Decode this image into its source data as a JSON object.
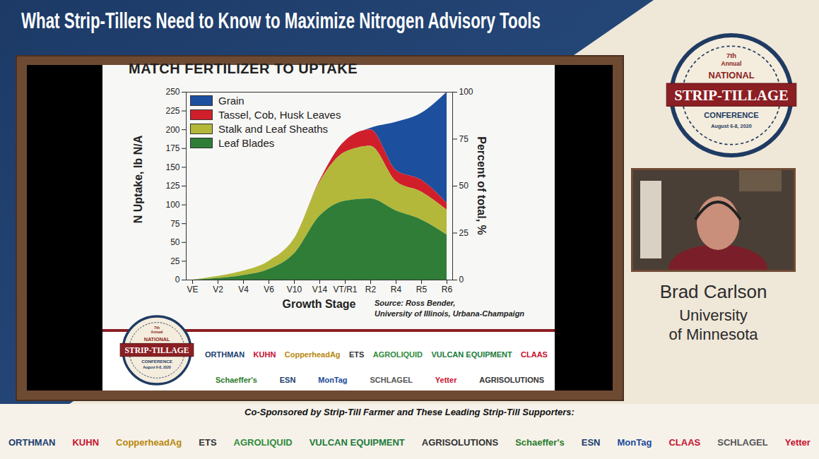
{
  "page": {
    "banner": "What Strip-Tillers Need to Know to Maximize Nitrogen Advisory Tools",
    "badge": {
      "edition": "7th",
      "annual": "Annual",
      "name": "NATIONAL",
      "title": "STRIP-TILLAGE",
      "subtitle": "CONFERENCE",
      "dates": "August 6-8, 2020"
    },
    "speaker": {
      "name": "Brad Carlson",
      "affiliation": [
        "University",
        "of Minnesota"
      ]
    },
    "slide_sponsors": [
      [
        "ORTHMAN",
        "KUHN",
        "CopperheadAg",
        "ETS",
        "AGROLIQUID",
        "VULCAN EQUIPMENT",
        "CLAAS"
      ],
      [
        "Schaeffer's",
        "ESN",
        "MonTag",
        "SCHLAGEL",
        "Yetter",
        "AGRISOLUTIONS"
      ]
    ],
    "cosponsor_note": "Co-Sponsored by Strip-Till Farmer and These Leading Strip-Till Supporters:",
    "sponsors": [
      "ORTHMAN",
      "KUHN",
      "CopperheadAg",
      "ETS",
      "AGROLIQUID",
      "VULCAN EQUIPMENT",
      "AGRISOLUTIONS",
      "Schaeffer's",
      "ESN",
      "MonTag",
      "CLAAS",
      "SCHLAGEL",
      "Yetter"
    ]
  },
  "chart_data": {
    "type": "area",
    "stacked": true,
    "title": "MATCH FERTILIZER TO UPTAKE",
    "xlabel": "Growth Stage",
    "ylabel": "N Uptake, lb N/A",
    "y2label": "Percent of total, %",
    "source": [
      "Source: Ross Bender,",
      "University of Illinois, Urbana-Champaign"
    ],
    "categories": [
      "VE",
      "V2",
      "V4",
      "V6",
      "V10",
      "V14",
      "VT/R1",
      "R2",
      "R4",
      "R5",
      "R6"
    ],
    "series": [
      {
        "name": "Grain",
        "color": "#1c4f9e",
        "values": [
          0,
          0,
          0,
          0,
          0,
          0,
          0,
          2,
          64,
          89,
          148
        ]
      },
      {
        "name": "Tassel, Cob, Husk Leaves",
        "color": "#d01f2a",
        "values": [
          0,
          0,
          0,
          0,
          0,
          2,
          15,
          22,
          15,
          16,
          9
        ]
      },
      {
        "name": "Stalk and Leaf Sheaths",
        "color": "#b3b83a",
        "values": [
          0,
          3,
          6,
          11,
          20,
          45,
          65,
          70,
          39,
          37,
          33
        ]
      },
      {
        "name": "Leaf Blades",
        "color": "#2f7d36",
        "values": [
          0,
          2,
          6,
          14,
          35,
          85,
          105,
          108,
          92,
          80,
          60
        ]
      }
    ],
    "ylim": [
      0,
      250
    ],
    "yticks": [
      0,
      25,
      50,
      75,
      100,
      125,
      150,
      175,
      200,
      225,
      250
    ],
    "y2lim": [
      0,
      100
    ],
    "y2ticks": [
      0,
      25,
      50,
      75,
      100
    ],
    "legend": "top-left",
    "grid": false
  }
}
